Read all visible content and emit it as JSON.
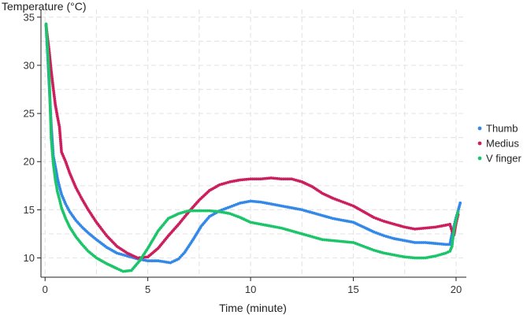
{
  "chart_data": {
    "type": "scatter",
    "title": "",
    "xlabel": "Time (minute)",
    "ylabel": "Temperature (°C)",
    "xlim": [
      -0.2,
      20.5
    ],
    "ylim": [
      8.0,
      35.8
    ],
    "xticks": [
      0,
      5,
      10,
      15,
      20
    ],
    "yticks": [
      10,
      15,
      20,
      25,
      30,
      35
    ],
    "grid": true,
    "legend_position": "right",
    "series": [
      {
        "name": "Thumb",
        "color": "#3388e8",
        "points": [
          [
            0.05,
            34.2
          ],
          [
            0.3,
            23.8
          ],
          [
            0.4,
            20.6
          ],
          [
            0.5,
            19.5
          ],
          [
            0.6,
            18.3
          ],
          [
            0.7,
            17.4
          ],
          [
            0.8,
            16.6
          ],
          [
            1.0,
            15.6
          ],
          [
            1.2,
            14.8
          ],
          [
            1.5,
            13.9
          ],
          [
            1.8,
            13.2
          ],
          [
            2.1,
            12.6
          ],
          [
            2.5,
            11.9
          ],
          [
            3.0,
            11.1
          ],
          [
            3.5,
            10.5
          ],
          [
            4.0,
            10.2
          ],
          [
            4.5,
            9.9
          ],
          [
            5.0,
            9.7
          ],
          [
            5.5,
            9.7
          ],
          [
            5.8,
            9.6
          ],
          [
            6.1,
            9.5
          ],
          [
            6.5,
            9.9
          ],
          [
            6.8,
            10.6
          ],
          [
            7.2,
            11.9
          ],
          [
            7.6,
            13.3
          ],
          [
            8.0,
            14.3
          ],
          [
            8.5,
            14.9
          ],
          [
            9.0,
            15.3
          ],
          [
            9.5,
            15.7
          ],
          [
            10.0,
            15.9
          ],
          [
            10.5,
            15.8
          ],
          [
            11.0,
            15.6
          ],
          [
            11.5,
            15.4
          ],
          [
            12.0,
            15.2
          ],
          [
            12.5,
            15.0
          ],
          [
            13.0,
            14.7
          ],
          [
            13.5,
            14.4
          ],
          [
            14.0,
            14.1
          ],
          [
            14.5,
            13.9
          ],
          [
            15.0,
            13.7
          ],
          [
            15.5,
            13.2
          ],
          [
            16.0,
            12.7
          ],
          [
            16.5,
            12.3
          ],
          [
            17.0,
            12.0
          ],
          [
            17.5,
            11.8
          ],
          [
            18.0,
            11.6
          ],
          [
            18.5,
            11.6
          ],
          [
            19.0,
            11.5
          ],
          [
            19.5,
            11.4
          ],
          [
            19.7,
            11.4
          ],
          [
            19.8,
            12.5
          ],
          [
            19.9,
            13.3
          ],
          [
            20.0,
            14.2
          ],
          [
            20.1,
            14.9
          ],
          [
            20.2,
            15.7
          ]
        ]
      },
      {
        "name": "Medius",
        "color": "#cc1f5e",
        "points": [
          [
            0.05,
            34.1
          ],
          [
            0.2,
            31.5
          ],
          [
            0.3,
            29.4
          ],
          [
            0.4,
            27.6
          ],
          [
            0.5,
            25.9
          ],
          [
            0.6,
            24.7
          ],
          [
            0.7,
            23.6
          ],
          [
            0.8,
            21.0
          ],
          [
            1.0,
            20.0
          ],
          [
            1.2,
            18.8
          ],
          [
            1.5,
            17.3
          ],
          [
            1.8,
            16.1
          ],
          [
            2.1,
            15.0
          ],
          [
            2.5,
            13.7
          ],
          [
            3.0,
            12.3
          ],
          [
            3.5,
            11.2
          ],
          [
            4.0,
            10.5
          ],
          [
            4.5,
            10.0
          ],
          [
            5.0,
            10.1
          ],
          [
            5.5,
            11.0
          ],
          [
            6.0,
            12.3
          ],
          [
            6.5,
            13.5
          ],
          [
            7.0,
            14.8
          ],
          [
            7.5,
            16.0
          ],
          [
            8.0,
            17.0
          ],
          [
            8.5,
            17.6
          ],
          [
            9.0,
            17.9
          ],
          [
            9.5,
            18.1
          ],
          [
            10.0,
            18.2
          ],
          [
            10.5,
            18.2
          ],
          [
            11.0,
            18.3
          ],
          [
            11.5,
            18.2
          ],
          [
            12.0,
            18.2
          ],
          [
            12.5,
            17.9
          ],
          [
            13.0,
            17.4
          ],
          [
            13.5,
            16.7
          ],
          [
            14.0,
            16.2
          ],
          [
            14.5,
            15.8
          ],
          [
            15.0,
            15.4
          ],
          [
            15.5,
            14.8
          ],
          [
            16.0,
            14.2
          ],
          [
            16.5,
            13.8
          ],
          [
            17.0,
            13.5
          ],
          [
            17.5,
            13.2
          ],
          [
            18.0,
            13.0
          ],
          [
            18.5,
            13.1
          ],
          [
            19.0,
            13.2
          ],
          [
            19.5,
            13.4
          ],
          [
            19.7,
            13.5
          ],
          [
            19.8,
            12.8
          ],
          [
            19.9,
            12.4
          ],
          [
            20.0,
            13.6
          ],
          [
            20.1,
            14.5
          ]
        ]
      },
      {
        "name": "V finger",
        "color": "#1cc46a",
        "points": [
          [
            0.05,
            34.3
          ],
          [
            0.2,
            28.8
          ],
          [
            0.3,
            22.4
          ],
          [
            0.4,
            19.8
          ],
          [
            0.5,
            18.1
          ],
          [
            0.6,
            16.9
          ],
          [
            0.7,
            16.1
          ],
          [
            0.8,
            15.2
          ],
          [
            1.0,
            14.1
          ],
          [
            1.2,
            13.2
          ],
          [
            1.5,
            12.2
          ],
          [
            1.8,
            11.4
          ],
          [
            2.1,
            10.7
          ],
          [
            2.5,
            10.0
          ],
          [
            3.0,
            9.4
          ],
          [
            3.5,
            8.9
          ],
          [
            3.8,
            8.6
          ],
          [
            4.2,
            8.7
          ],
          [
            4.6,
            9.7
          ],
          [
            5.0,
            11.0
          ],
          [
            5.5,
            12.8
          ],
          [
            6.0,
            14.1
          ],
          [
            6.5,
            14.6
          ],
          [
            7.0,
            14.9
          ],
          [
            7.5,
            14.9
          ],
          [
            8.0,
            14.9
          ],
          [
            8.5,
            14.8
          ],
          [
            9.0,
            14.6
          ],
          [
            9.5,
            14.2
          ],
          [
            10.0,
            13.7
          ],
          [
            10.5,
            13.5
          ],
          [
            11.0,
            13.3
          ],
          [
            11.5,
            13.1
          ],
          [
            12.0,
            12.8
          ],
          [
            12.5,
            12.5
          ],
          [
            13.0,
            12.2
          ],
          [
            13.5,
            11.9
          ],
          [
            14.0,
            11.8
          ],
          [
            14.5,
            11.7
          ],
          [
            15.0,
            11.6
          ],
          [
            15.5,
            11.2
          ],
          [
            16.0,
            10.8
          ],
          [
            16.5,
            10.5
          ],
          [
            17.0,
            10.3
          ],
          [
            17.5,
            10.1
          ],
          [
            18.0,
            10.0
          ],
          [
            18.5,
            10.0
          ],
          [
            19.0,
            10.2
          ],
          [
            19.5,
            10.5
          ],
          [
            19.7,
            10.7
          ],
          [
            19.8,
            11.2
          ],
          [
            19.9,
            13.0
          ],
          [
            20.0,
            14.0
          ],
          [
            20.1,
            14.8
          ]
        ]
      }
    ]
  }
}
